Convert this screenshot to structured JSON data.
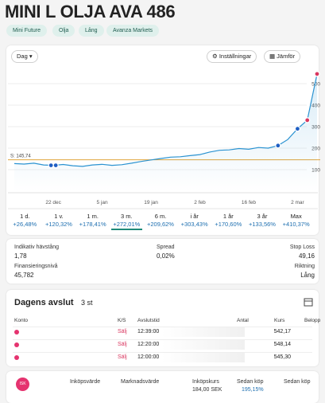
{
  "header": {
    "title": "MINI L OLJA AVA 486",
    "tags": [
      "Mini Future",
      "Olja",
      "Lång",
      "Avanza Markets"
    ]
  },
  "toolbar": {
    "period_select": "Dag",
    "settings": "Inställningar",
    "compare": "Jämför"
  },
  "chart_data": {
    "type": "line",
    "color": "#2b93d1",
    "categories": [
      null,
      null,
      null,
      null,
      "22 dec",
      null,
      null,
      null,
      null,
      "5 jan",
      null,
      null,
      null,
      null,
      "19 jan",
      null,
      null,
      null,
      null,
      "2 feb",
      null,
      null,
      null,
      null,
      "16 feb",
      null,
      null,
      null,
      null,
      "2 mar",
      null,
      null
    ],
    "values": [
      128,
      126,
      130,
      122,
      120,
      124,
      118,
      115,
      122,
      125,
      120,
      123,
      130,
      138,
      145,
      152,
      158,
      160,
      165,
      170,
      182,
      190,
      192,
      198,
      195,
      203,
      200,
      212,
      240,
      290,
      330,
      545
    ],
    "ylim": [
      0,
      560
    ],
    "yticks": [
      100,
      200,
      300,
      400,
      500
    ],
    "grid": true,
    "reference": {
      "value": 145.74,
      "label": "S: 145,74",
      "color": "#e0a43c"
    }
  },
  "periods": [
    {
      "label": "1 d.",
      "change": "+26,48%"
    },
    {
      "label": "1 v.",
      "change": "+120,32%"
    },
    {
      "label": "1 m.",
      "change": "+178,41%"
    },
    {
      "label": "3 m.",
      "change": "+272,01%"
    },
    {
      "label": "6 m.",
      "change": "+209,62%"
    },
    {
      "label": "i år",
      "change": "+303,43%"
    },
    {
      "label": "1 år",
      "change": "+170,60%"
    },
    {
      "label": "3 år",
      "change": "+133,56%"
    },
    {
      "label": "Max",
      "change": "+410,37%"
    }
  ],
  "details": {
    "leverage_label": "Indikativ hävstång",
    "leverage": "1,78",
    "spread_label": "Spread",
    "spread": "0,02%",
    "stop_loss_label": "Stop Loss",
    "stop_loss": "49,16",
    "financing_label": "Finansieringsnivå",
    "financing": "45,782",
    "direction_label": "Riktning",
    "direction": "Lång"
  },
  "trades": {
    "title": "Dagens avslut",
    "count": "3 st",
    "columns": [
      "Konto",
      "K/S",
      "Avslutstid",
      "Antal",
      "Kurs",
      "Belopp"
    ],
    "rows": [
      {
        "side": "Sälj",
        "time": "12:39:00",
        "price": "542,17"
      },
      {
        "side": "Sälj",
        "time": "12:20:00",
        "price": "548,14"
      },
      {
        "side": "Sälj",
        "time": "12:00:00",
        "price": "545,30"
      }
    ]
  },
  "position": {
    "badge": "ISK",
    "columns": [
      "Inköpsvärde",
      "Marknadsvärde",
      "Inköpskurs",
      "Sedan köp",
      "Sedan köp"
    ],
    "purchase_price": "184,00 SEK",
    "since_purchase": "195,15%"
  }
}
